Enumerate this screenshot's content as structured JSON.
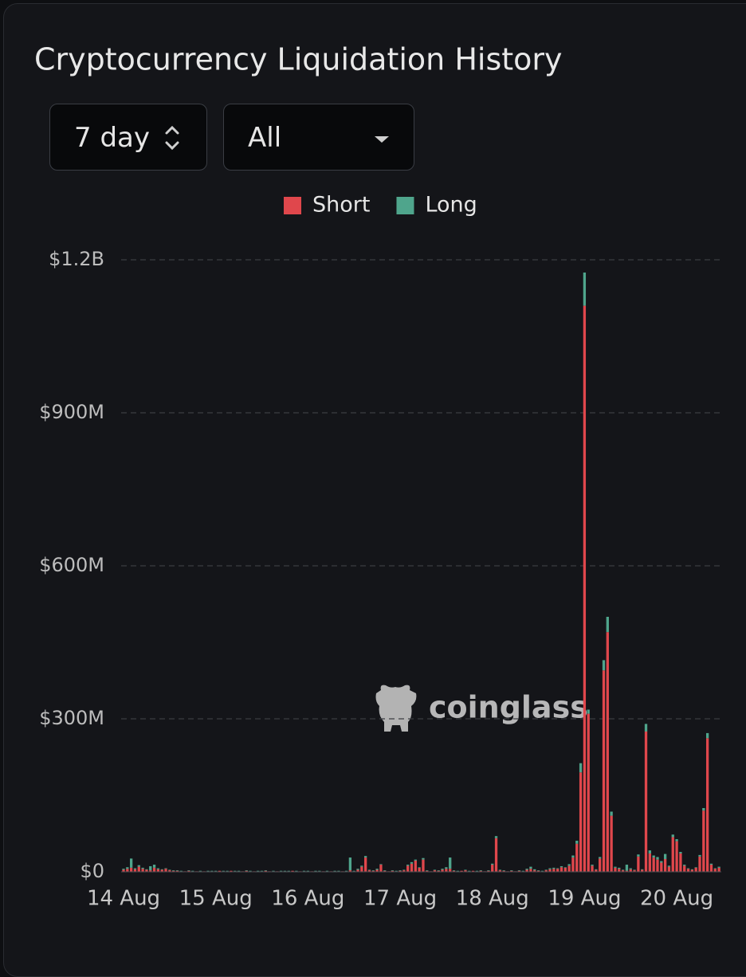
{
  "controls": {
    "range": "7 day",
    "filter": "All"
  },
  "watermark": "coinglass",
  "chart_data": {
    "type": "stacked-bar",
    "title": "Cryptocurrency Liquidation History",
    "categories": [
      "14 Aug",
      null,
      null,
      null,
      null,
      null,
      null,
      null,
      null,
      null,
      null,
      null,
      null,
      null,
      null,
      null,
      null,
      null,
      null,
      null,
      null,
      null,
      null,
      null,
      "15 Aug",
      null,
      null,
      null,
      null,
      null,
      null,
      null,
      null,
      null,
      null,
      null,
      null,
      null,
      null,
      null,
      null,
      null,
      null,
      null,
      null,
      null,
      null,
      null,
      "16 Aug",
      null,
      null,
      null,
      null,
      null,
      null,
      null,
      null,
      null,
      null,
      null,
      null,
      null,
      null,
      null,
      null,
      null,
      null,
      null,
      null,
      null,
      null,
      null,
      "17 Aug",
      null,
      null,
      null,
      null,
      null,
      null,
      null,
      null,
      null,
      null,
      null,
      null,
      null,
      null,
      null,
      null,
      null,
      null,
      null,
      null,
      null,
      null,
      null,
      "18 Aug",
      null,
      null,
      null,
      null,
      null,
      null,
      null,
      null,
      null,
      null,
      null,
      null,
      null,
      null,
      null,
      null,
      null,
      null,
      null,
      null,
      null,
      null,
      null,
      "19 Aug",
      null,
      null,
      null,
      null,
      null,
      null,
      null,
      null,
      null,
      null,
      null,
      null,
      null,
      null,
      null,
      null,
      null,
      null,
      null,
      null,
      null,
      null,
      null,
      "20 Aug",
      null,
      null,
      null,
      null,
      null,
      null,
      null,
      null,
      null,
      null,
      null
    ],
    "series": [
      {
        "name": "Short",
        "color": "#e0474c",
        "values": [
          4000000,
          6000000,
          8000000,
          5000000,
          10000000,
          6000000,
          4000000,
          3000000,
          8000000,
          5000000,
          4000000,
          6000000,
          3000000,
          2000000,
          2000000,
          1000000,
          1000000,
          2000000,
          1000000,
          1000000,
          1000000,
          1000000,
          1000000,
          1000000,
          1000000,
          2000000,
          1000000,
          1000000,
          2000000,
          1000000,
          1000000,
          1000000,
          2000000,
          1000000,
          1000000,
          1000000,
          1000000,
          2000000,
          1000000,
          1000000,
          1000000,
          1000000,
          1000000,
          1000000,
          2000000,
          1000000,
          1000000,
          1000000,
          1000000,
          1000000,
          1000000,
          1000000,
          1000000,
          1000000,
          1000000,
          1000000,
          1000000,
          1000000,
          1000000,
          3000000,
          1000000,
          4000000,
          10000000,
          28000000,
          3000000,
          2000000,
          4000000,
          14000000,
          2000000,
          1000000,
          2000000,
          1000000,
          2000000,
          3000000,
          12000000,
          16000000,
          22000000,
          8000000,
          24000000,
          2000000,
          1000000,
          3000000,
          2000000,
          4000000,
          6000000,
          6000000,
          2000000,
          1000000,
          2000000,
          3000000,
          1000000,
          2000000,
          1000000,
          2000000,
          1000000,
          2000000,
          14000000,
          66000000,
          3000000,
          2000000,
          1000000,
          2000000,
          1000000,
          2000000,
          1000000,
          4000000,
          6000000,
          3000000,
          2000000,
          1000000,
          3000000,
          5000000,
          6000000,
          6000000,
          9000000,
          8000000,
          12000000,
          28000000,
          55000000,
          195000000,
          1110000000,
          310000000,
          12000000,
          4000000,
          26000000,
          395000000,
          470000000,
          110000000,
          8000000,
          6000000,
          3000000,
          2000000,
          5000000,
          3000000,
          30000000,
          4000000,
          275000000,
          36000000,
          28000000,
          24000000,
          18000000,
          25000000,
          10000000,
          68000000,
          60000000,
          36000000,
          12000000,
          6000000,
          4000000,
          8000000,
          30000000,
          120000000,
          262000000,
          14000000,
          6000000,
          8000000
        ]
      },
      {
        "name": "Long",
        "color": "#4fa58c",
        "values": [
          2000000,
          3000000,
          18000000,
          2000000,
          3000000,
          2000000,
          1000000,
          8000000,
          6000000,
          2000000,
          1000000,
          1000000,
          1000000,
          1000000,
          1000000,
          1000000,
          0,
          1000000,
          1000000,
          0,
          1000000,
          0,
          1000000,
          1000000,
          1000000,
          0,
          1000000,
          1000000,
          0,
          1000000,
          1000000,
          0,
          1000000,
          1000000,
          0,
          1000000,
          1000000,
          1000000,
          0,
          1000000,
          0,
          1000000,
          1000000,
          1000000,
          0,
          1000000,
          0,
          1000000,
          1000000,
          0,
          1000000,
          1000000,
          0,
          1000000,
          0,
          1000000,
          1000000,
          0,
          1000000,
          25000000,
          1000000,
          2000000,
          2000000,
          3000000,
          1000000,
          1000000,
          2000000,
          1000000,
          1000000,
          0,
          1000000,
          1000000,
          1000000,
          1000000,
          2000000,
          3000000,
          2000000,
          1000000,
          3000000,
          1000000,
          0,
          1000000,
          1000000,
          2000000,
          3000000,
          22000000,
          1000000,
          1000000,
          0,
          1000000,
          1000000,
          0,
          1000000,
          1000000,
          0,
          1000000,
          2000000,
          4000000,
          1000000,
          1000000,
          0,
          1000000,
          0,
          1000000,
          1000000,
          2000000,
          4000000,
          2000000,
          1000000,
          1000000,
          1000000,
          2000000,
          2000000,
          1000000,
          2000000,
          1000000,
          3000000,
          4000000,
          6000000,
          18000000,
          65000000,
          8000000,
          2000000,
          1000000,
          3000000,
          20000000,
          30000000,
          8000000,
          2000000,
          2000000,
          1000000,
          12000000,
          2000000,
          1000000,
          4000000,
          1000000,
          15000000,
          6000000,
          4000000,
          5000000,
          3000000,
          10000000,
          2000000,
          5000000,
          4000000,
          3000000,
          2000000,
          1000000,
          1000000,
          1000000,
          3000000,
          5000000,
          10000000,
          2000000,
          1000000,
          2000000
        ]
      }
    ],
    "ylim": [
      0,
      1200000000
    ],
    "yticks": [
      {
        "value": 0,
        "label": "$0"
      },
      {
        "value": 300000000,
        "label": "$300M"
      },
      {
        "value": 600000000,
        "label": "$600M"
      },
      {
        "value": 900000000,
        "label": "$900M"
      },
      {
        "value": 1200000000,
        "label": "$1.2B"
      }
    ],
    "grid": true
  }
}
